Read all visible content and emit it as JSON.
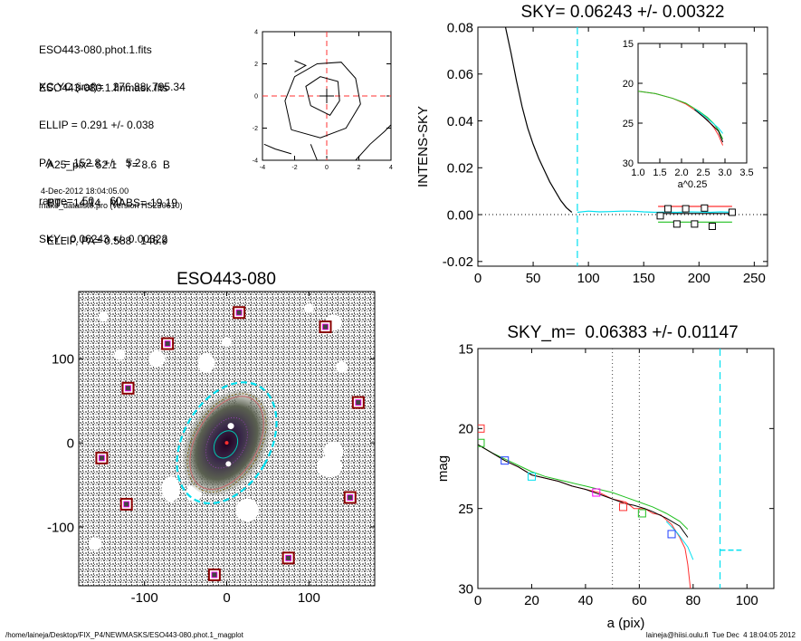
{
  "info": {
    "lines_a": [
      "ESO443-080.phot.1.fits",
      "ESO443-080.1.finmask.fits"
    ],
    "lines_b": [
      "XC,YC (iraf)=   276.88, 795.34",
      "ELLIP = 0.291 +/- 0.038",
      "PA    = 152.8 +/-   5.2",
      "range=   50.-   60.",
      "SKY= 0.06243 +/- 0.00322"
    ],
    "lines_c": [
      "A25_pix= 52.1   T= 8.6  B",
      "BT=  14.14   MABS=-19.19",
      "ELLIP, PA= 0.588   146.9"
    ],
    "date": "4-Dec-2012 18:04:05.00",
    "program": "make_datalist0.pro (version HS230610)"
  },
  "footer": {
    "left": "/home/laineja/Desktop/FIX_P4/NEWMASKS/ESO443-080.phot.1_magplot",
    "right": "laineja@hiisi.oulu.fi  Tue Dec  4 18:04:05 2012"
  },
  "colors": {
    "cyan": "#00e0f0",
    "red": "#ff3030",
    "green": "#20c020",
    "blue": "#2040ff",
    "darkred": "#8b0000",
    "magenta": "#ff00ff",
    "gray_dotted": "#888888"
  },
  "chart_data": [
    {
      "id": "contour",
      "type": "contour",
      "title": "",
      "xlim": [
        -4,
        4
      ],
      "ylim": [
        -4,
        4
      ],
      "xticks": [
        "-4",
        "-2",
        "0",
        "2",
        "4"
      ],
      "yticks": [
        "-4",
        "-2",
        "0",
        "2",
        "4"
      ],
      "contours": [
        [
          [
            -2.2,
            -2.1
          ],
          [
            -2.6,
            -0.3
          ],
          [
            -2.0,
            1.2
          ],
          [
            -0.6,
            2.0
          ],
          [
            0.9,
            2.1
          ],
          [
            1.8,
            1.1
          ],
          [
            2.1,
            -0.5
          ],
          [
            1.2,
            -2.0
          ],
          [
            -0.4,
            -2.6
          ],
          [
            -2.2,
            -2.1
          ]
        ],
        [
          [
            -1.0,
            -0.6
          ],
          [
            -1.3,
            0.6
          ],
          [
            -0.4,
            1.2
          ],
          [
            0.7,
            0.9
          ],
          [
            0.8,
            -0.3
          ],
          [
            0.2,
            -1.2
          ],
          [
            -1.0,
            -0.6
          ]
        ],
        [
          [
            -2.0,
            1.5
          ],
          [
            -1.3,
            1.9
          ],
          [
            -2.0,
            2.2
          ]
        ],
        [
          [
            -3.9,
            -3.0
          ],
          [
            -3.2,
            -3.3
          ],
          [
            -2.2,
            -3.6
          ]
        ],
        [
          [
            1.8,
            -4.0
          ],
          [
            2.7,
            -3.0
          ],
          [
            3.6,
            -2.2
          ],
          [
            4.0,
            -1.8
          ]
        ],
        [
          [
            -1.0,
            -3.0
          ],
          [
            -0.6,
            -4.0
          ]
        ]
      ],
      "crosshair": [
        0,
        0
      ]
    },
    {
      "id": "sky",
      "type": "line",
      "title": "SKY= 0.06243 +/- 0.00322",
      "xlabel": "",
      "ylabel": "INTENS-SKY",
      "xlim": [
        0,
        262
      ],
      "ylim": [
        -0.022,
        0.08
      ],
      "xticks": [
        "0",
        "50",
        "100",
        "150",
        "200",
        "250"
      ],
      "yticks": [
        "-0.02",
        "0.00",
        "0.02",
        "0.04",
        "0.06",
        "0.08"
      ],
      "vline": 90,
      "hline": 0,
      "series": [
        {
          "x": [
            25,
            30,
            35,
            40,
            45,
            50,
            55,
            60,
            65,
            70,
            75,
            80,
            85
          ],
          "y": [
            0.08,
            0.069,
            0.057,
            0.046,
            0.037,
            0.03,
            0.024,
            0.019,
            0.014,
            0.01,
            0.006,
            0.003,
            0.001
          ],
          "color": "#000000"
        },
        {
          "x": [
            90,
            100,
            110,
            120,
            130,
            140,
            150,
            160,
            170,
            180,
            190,
            200,
            210,
            220,
            230
          ],
          "y": [
            0.001,
            0.0015,
            0.0012,
            0.0013,
            0.0015,
            0.0015,
            0.0012,
            0.001,
            0.0011,
            0.001,
            0.0012,
            0.0011,
            0.001,
            0.0012,
            0.001
          ],
          "color": "#00e0f0"
        },
        {
          "x": [
            163,
            230
          ],
          "y": [
            0.0005,
            0.0005
          ],
          "color": "#000000"
        },
        {
          "x": [
            163,
            230
          ],
          "y": [
            0.0035,
            0.0035
          ],
          "color": "#ff3030"
        },
        {
          "x": [
            163,
            230
          ],
          "y": [
            -0.0032,
            -0.0032
          ],
          "color": "#20c020"
        }
      ],
      "squares": {
        "x": [
          165,
          172,
          180,
          188,
          196,
          205,
          212,
          230
        ],
        "y": [
          -0.0005,
          0.0025,
          -0.004,
          0.0025,
          -0.004,
          0.0028,
          -0.005,
          0.001
        ]
      },
      "inset": {
        "xlabel": "a^0.25",
        "xlim": [
          1.0,
          3.5
        ],
        "ylim": [
          30,
          15
        ],
        "xticks": [
          "1.0",
          "1.5",
          "2.0",
          "2.5",
          "3.0",
          "3.5"
        ],
        "yticks": [
          "15",
          "20",
          "25",
          "30"
        ],
        "series": [
          {
            "x": [
              1.0,
              1.4,
              1.8,
              2.1,
              2.4,
              2.6,
              2.75,
              2.85,
              2.95
            ],
            "y": [
              21.0,
              21.3,
              21.9,
              22.6,
              23.7,
              24.6,
              25.6,
              26.5,
              27.8
            ],
            "color": "#ff3030"
          },
          {
            "x": [
              1.0,
              1.4,
              1.8,
              2.1,
              2.4,
              2.6,
              2.75,
              2.85,
              2.95
            ],
            "y": [
              21.0,
              21.3,
              21.9,
              22.5,
              23.5,
              24.3,
              25.1,
              25.9,
              27.0
            ],
            "color": "#20c020"
          },
          {
            "x": [
              2.3,
              2.5,
              2.7,
              2.85,
              2.95
            ],
            "y": [
              23.2,
              24.0,
              24.9,
              25.6,
              26.3
            ],
            "color": "#00e0f0"
          },
          {
            "x": [
              2.3,
              2.5,
              2.7,
              2.85,
              2.95
            ],
            "y": [
              23.3,
              24.2,
              25.2,
              26.0,
              27.4
            ],
            "color": "#000000"
          }
        ]
      }
    },
    {
      "id": "image",
      "type": "image",
      "title": "ESO443-080",
      "xlim": [
        -180,
        180
      ],
      "ylim": [
        -170,
        180
      ],
      "xticks": [
        "-100",
        "0",
        "100"
      ],
      "yticks": [
        "-100",
        "0",
        "100"
      ],
      "markers": [
        [
          15,
          155
        ],
        [
          -72,
          118
        ],
        [
          120,
          138
        ],
        [
          -120,
          65
        ],
        [
          160,
          48
        ],
        [
          -152,
          -18
        ],
        [
          -122,
          -73
        ],
        [
          150,
          -65
        ],
        [
          75,
          -137
        ],
        [
          -15,
          -157
        ]
      ]
    },
    {
      "id": "mag",
      "type": "line",
      "title": "SKY_m=  0.06383 +/- 0.01147",
      "xlabel": "a (pix)",
      "ylabel": "mag",
      "xlim": [
        0,
        110
      ],
      "ylim": [
        30,
        15
      ],
      "xticks": [
        "0",
        "20",
        "40",
        "60",
        "80",
        "100"
      ],
      "yticks": [
        "15",
        "20",
        "25",
        "30"
      ],
      "vlines_dotted": [
        50,
        60
      ],
      "vline_dashed": 90,
      "sky_level": {
        "x": [
          90,
          98
        ],
        "y": [
          27.6,
          27.6
        ]
      },
      "series": [
        {
          "name": "",
          "x": [
            0,
            5,
            10,
            15,
            20,
            25,
            30,
            35,
            40,
            45,
            50,
            55,
            58,
            62,
            65,
            68,
            72,
            75,
            77,
            78,
            79
          ],
          "y": [
            21.0,
            21.5,
            22.0,
            22.4,
            22.9,
            23.1,
            23.3,
            23.6,
            23.8,
            24.0,
            24.4,
            24.6,
            25.0,
            25.0,
            25.3,
            25.4,
            26.0,
            26.8,
            27.5,
            28.5,
            30.0
          ],
          "color": "#ff3030"
        },
        {
          "name": "",
          "x": [
            0,
            5,
            10,
            15,
            20,
            25,
            30,
            35,
            40,
            45,
            50,
            55,
            60,
            65,
            70,
            75,
            78
          ],
          "y": [
            21.0,
            21.5,
            21.9,
            22.3,
            22.7,
            23.0,
            23.2,
            23.4,
            23.6,
            23.8,
            24.0,
            24.3,
            24.6,
            24.9,
            25.3,
            25.8,
            26.3
          ],
          "color": "#20c020"
        },
        {
          "name": "",
          "x": [
            0,
            5,
            10,
            15,
            20,
            25,
            30,
            35,
            40,
            45,
            50,
            55,
            58,
            62,
            65,
            70,
            75,
            78
          ],
          "y": [
            21.0,
            21.5,
            22.0,
            22.4,
            22.9,
            23.1,
            23.3,
            23.6,
            23.8,
            24.1,
            24.4,
            24.7,
            24.8,
            25.0,
            25.2,
            25.6,
            26.1,
            26.8
          ],
          "color": "#000000"
        },
        {
          "name": "",
          "x": [
            70,
            74,
            78,
            80
          ],
          "y": [
            25.8,
            26.5,
            27.4,
            28.2
          ],
          "color": "#00e0f0"
        }
      ],
      "squares": [
        {
          "x": 1,
          "y": 20.0,
          "color": "#ff3030"
        },
        {
          "x": 1,
          "y": 20.9,
          "color": "#20c020"
        },
        {
          "x": 10,
          "y": 22.0,
          "color": "#2040ff"
        },
        {
          "x": 20,
          "y": 23.0,
          "color": "#00e0f0"
        },
        {
          "x": 44,
          "y": 24.0,
          "color": "#ff00ff"
        },
        {
          "x": 54,
          "y": 24.9,
          "color": "#ff3030"
        },
        {
          "x": 61,
          "y": 25.3,
          "color": "#20c020"
        },
        {
          "x": 72,
          "y": 26.6,
          "color": "#2040ff"
        }
      ]
    }
  ]
}
